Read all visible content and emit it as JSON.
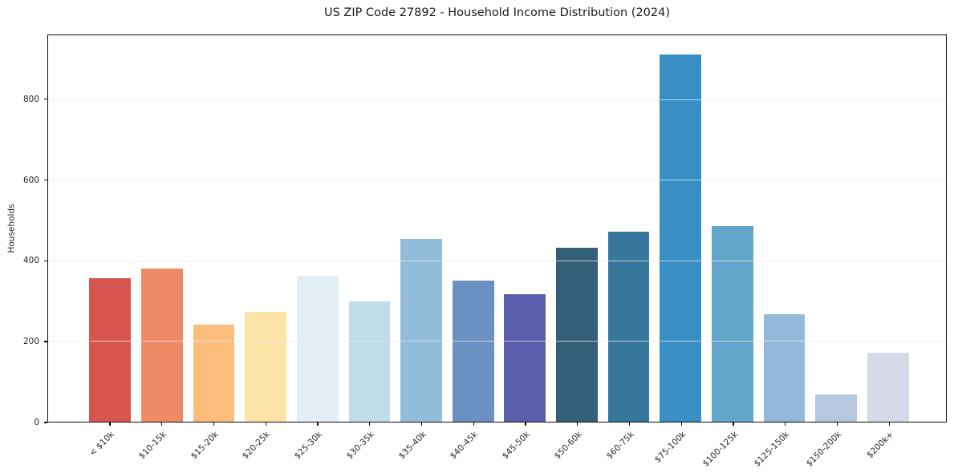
{
  "chart_data": {
    "type": "bar",
    "title": "US ZIP Code 27892 - Household Income Distribution (2024)",
    "xlabel": "",
    "ylabel": "Households",
    "categories": [
      "< $10k",
      "$10-15k",
      "$15-20k",
      "$20-25k",
      "$25-30k",
      "$30-35k",
      "$35-40k",
      "$40-45k",
      "$45-50k",
      "$50-60k",
      "$60-75k",
      "$75-100k",
      "$100-125k",
      "$125-150k",
      "$150-200k",
      "$200k+"
    ],
    "values": [
      356,
      380,
      242,
      273,
      363,
      298,
      455,
      351,
      316,
      433,
      473,
      913,
      487,
      266,
      67,
      172
    ],
    "bar_colors": [
      "#d6564f",
      "#ef8a67",
      "#fabd7b",
      "#fce4a7",
      "#e3eff5",
      "#bedde9",
      "#93bcdb",
      "#6b91c3",
      "#5a5fad",
      "#335f79",
      "#37779e",
      "#378fc3",
      "#63a6cb",
      "#93b8d9",
      "#b6c8df",
      "#d6d9e8"
    ],
    "ylim": [
      0,
      960
    ],
    "yticks": [
      0,
      200,
      400,
      600,
      800
    ],
    "grid": "horizontal",
    "gridline_color": "#ebebeb",
    "x_tick_rotation": 45,
    "legend": null,
    "background": "#ffffff"
  }
}
